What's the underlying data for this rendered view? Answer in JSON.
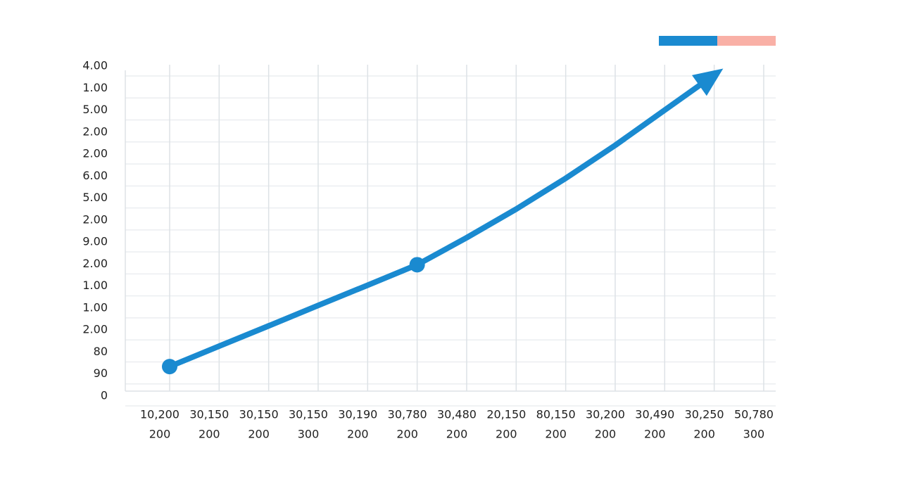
{
  "chart_data": {
    "type": "line",
    "categories": [
      [
        "10,200",
        "200"
      ],
      [
        "30,150",
        "200"
      ],
      [
        "30,150",
        "200"
      ],
      [
        "30,150",
        "300"
      ],
      [
        "30,190",
        "200"
      ],
      [
        "30,780",
        "200"
      ],
      [
        "30,480",
        "200"
      ],
      [
        "20,150",
        "200"
      ],
      [
        "80,150",
        "200"
      ],
      [
        "30,200",
        "200"
      ],
      [
        "30,490",
        "200"
      ],
      [
        "30,250",
        "200"
      ],
      [
        "50,780",
        "300"
      ]
    ],
    "series": [
      {
        "color": "#1a8ad0",
        "values": [
          1.34,
          2.27,
          3.19,
          4.12,
          5.04,
          5.97,
          7.2,
          8.5,
          9.9,
          11.4,
          13.0,
          14.6,
          null
        ]
      }
    ],
    "markers_at": [
      0,
      5
    ],
    "legend_colors": [
      "#1a8ad0",
      "#f9b0a6"
    ],
    "ylim": [
      0,
      15
    ],
    "yticks": [
      {
        "value": 0,
        "label": "0"
      },
      {
        "value": 1,
        "label": "90"
      },
      {
        "value": 2,
        "label": "80"
      },
      {
        "value": 3,
        "label": "2.00"
      },
      {
        "value": 4,
        "label": "1.00"
      },
      {
        "value": 5,
        "label": "1.00"
      },
      {
        "value": 6,
        "label": "2.00"
      },
      {
        "value": 7,
        "label": "9.00"
      },
      {
        "value": 8,
        "label": "2.00"
      },
      {
        "value": 9,
        "label": "5.00"
      },
      {
        "value": 10,
        "label": "6.00"
      },
      {
        "value": 11,
        "label": "2.00"
      },
      {
        "value": 12,
        "label": "2.00"
      },
      {
        "value": 13,
        "label": "5.00"
      },
      {
        "value": 14,
        "label": "1.00"
      },
      {
        "value": 15,
        "label": "4.00"
      }
    ],
    "grid": true
  }
}
